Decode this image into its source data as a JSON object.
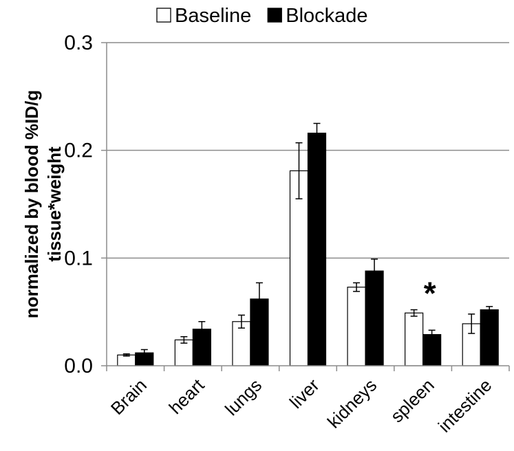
{
  "chart_data": {
    "type": "bar",
    "title": "",
    "xlabel": "",
    "ylabel": "normalized by blood %ID/g tissue*weight",
    "ylabel_lines": [
      "normalized by blood %ID/g",
      "tissue*weight"
    ],
    "ylim": [
      0,
      0.3
    ],
    "yticks": [
      0.0,
      0.1,
      0.2,
      0.3
    ],
    "ytick_labels": [
      "0.0",
      "0.1",
      "0.2",
      "0.3"
    ],
    "grid": true,
    "legend_position": "top",
    "categories": [
      "Brain",
      "heart",
      "lungs",
      "liver",
      "kidneys",
      "spleen",
      "intestine"
    ],
    "series": [
      {
        "name": "Baseline",
        "color": "#ffffff",
        "stroke": "#000000",
        "values": [
          0.01,
          0.024,
          0.041,
          0.181,
          0.073,
          0.049,
          0.039
        ],
        "errors": [
          0.001,
          0.003,
          0.006,
          0.026,
          0.004,
          0.003,
          0.009
        ]
      },
      {
        "name": "Blockade",
        "color": "#000000",
        "stroke": "#000000",
        "values": [
          0.012,
          0.034,
          0.062,
          0.216,
          0.088,
          0.029,
          0.052
        ],
        "errors": [
          0.003,
          0.007,
          0.015,
          0.009,
          0.011,
          0.004,
          0.003
        ]
      }
    ],
    "annotations": [
      {
        "category": "spleen",
        "text": "*"
      }
    ]
  }
}
